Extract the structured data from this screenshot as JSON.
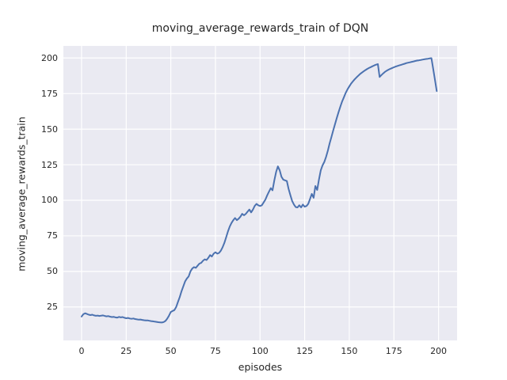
{
  "figure": {
    "background": "#ffffff",
    "axes_background": "#eaeaf2",
    "grid_color": "#ffffff",
    "text_color": "#262626"
  },
  "chart_data": {
    "type": "line",
    "title": "moving_average_rewards_train of DQN",
    "xlabel": "episodes",
    "ylabel": "moving_average_rewards_train",
    "line_color": "#4c72b0",
    "line_width": 2,
    "grid": true,
    "legend_position": "none",
    "xticks": [
      0,
      25,
      50,
      75,
      100,
      125,
      150,
      175,
      200
    ],
    "yticks": [
      25,
      50,
      75,
      100,
      125,
      150,
      175,
      200
    ],
    "xlim": [
      -10.2,
      210.4
    ],
    "ylim": [
      1.5,
      208.5
    ],
    "x_start": 0,
    "x_step": 1,
    "values": [
      18.3,
      19.9,
      20.6,
      20.1,
      19.6,
      19.3,
      19.6,
      19.1,
      18.8,
      19.0,
      18.7,
      18.9,
      19.1,
      18.7,
      18.4,
      18.6,
      18.2,
      17.9,
      18.1,
      17.7,
      17.5,
      18.0,
      17.7,
      17.9,
      17.4,
      17.1,
      17.3,
      16.9,
      16.7,
      16.9,
      16.5,
      16.3,
      16.1,
      16.2,
      15.9,
      15.7,
      15.5,
      15.6,
      15.3,
      15.1,
      14.9,
      14.7,
      14.5,
      14.3,
      14.2,
      14.1,
      14.4,
      15.2,
      16.8,
      19.0,
      21.5,
      22.2,
      22.8,
      25.0,
      28.5,
      32.0,
      36.0,
      39.5,
      43.0,
      45.0,
      46.5,
      50.0,
      52.0,
      53.0,
      52.5,
      54.0,
      55.5,
      56.0,
      57.5,
      58.5,
      58.0,
      59.5,
      61.5,
      60.5,
      62.5,
      63.5,
      62.5,
      63.0,
      64.5,
      67.0,
      70.0,
      74.0,
      78.0,
      81.5,
      84.0,
      86.0,
      87.5,
      86.0,
      87.0,
      88.5,
      90.5,
      89.5,
      90.5,
      92.0,
      93.5,
      91.5,
      93.5,
      96.0,
      97.5,
      96.5,
      96.0,
      96.5,
      98.5,
      100.5,
      103.5,
      106.0,
      108.5,
      107.0,
      114.0,
      120.0,
      123.8,
      121.0,
      116.5,
      114.5,
      114.0,
      113.5,
      108.0,
      103.5,
      99.5,
      97.0,
      95.2,
      95.0,
      96.5,
      95.0,
      97.0,
      95.5,
      96.0,
      97.5,
      101.0,
      104.5,
      101.8,
      110.0,
      107.3,
      114.5,
      121.0,
      124.5,
      127.0,
      130.5,
      135.0,
      140.0,
      144.5,
      149.0,
      153.5,
      158.0,
      162.0,
      166.0,
      169.5,
      172.5,
      175.5,
      178.0,
      180.0,
      182.0,
      183.5,
      185.0,
      186.3,
      187.5,
      188.7,
      189.7,
      190.6,
      191.5,
      192.3,
      193.0,
      193.6,
      194.2,
      194.8,
      195.3,
      195.7,
      186.7,
      188.0,
      189.2,
      190.3,
      191.1,
      191.8,
      192.4,
      193.0,
      193.5,
      194.0,
      194.4,
      194.8,
      195.2,
      195.6,
      196.0,
      196.4,
      196.7,
      197.0,
      197.3,
      197.6,
      197.9,
      198.2,
      198.4,
      198.6,
      198.9,
      199.1,
      199.3,
      199.5,
      199.7,
      199.9,
      192.5,
      184.5,
      176.8
    ]
  }
}
